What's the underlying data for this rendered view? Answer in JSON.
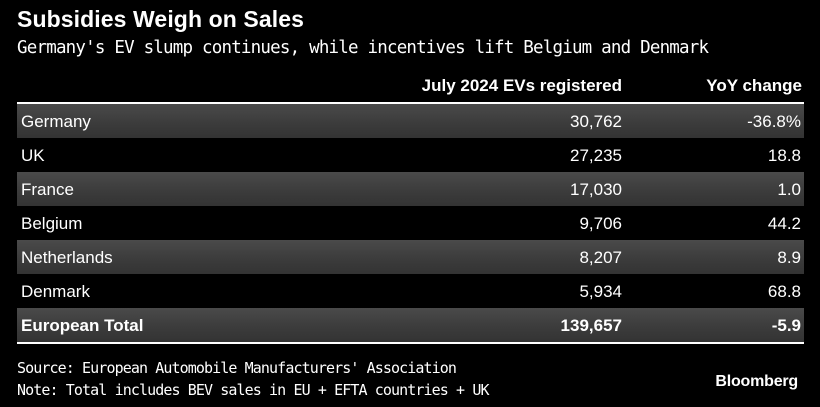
{
  "chart_data": {
    "type": "table",
    "title": "Subsidies Weigh on Sales",
    "subtitle": "Germany's EV slump continues, while incentives lift Belgium and Denmark",
    "columns": [
      "",
      "July 2024 EVs registered",
      "YoY change"
    ],
    "rows": [
      {
        "country": "Germany",
        "evs": "30,762",
        "yoy": "-36.8%"
      },
      {
        "country": "UK",
        "evs": "27,235",
        "yoy": "18.8"
      },
      {
        "country": "France",
        "evs": "17,030",
        "yoy": "1.0"
      },
      {
        "country": "Belgium",
        "evs": "9,706",
        "yoy": "44.2"
      },
      {
        "country": "Netherlands",
        "evs": "8,207",
        "yoy": "8.9"
      },
      {
        "country": "Denmark",
        "evs": "5,934",
        "yoy": "68.8"
      }
    ],
    "total": {
      "country": "European Total",
      "evs": "139,657",
      "yoy": "-5.9"
    },
    "source": "Source: European Automobile Manufacturers' Association",
    "note": "Note: Total includes BEV sales in EU + EFTA countries + UK",
    "brand": "Bloomberg"
  }
}
